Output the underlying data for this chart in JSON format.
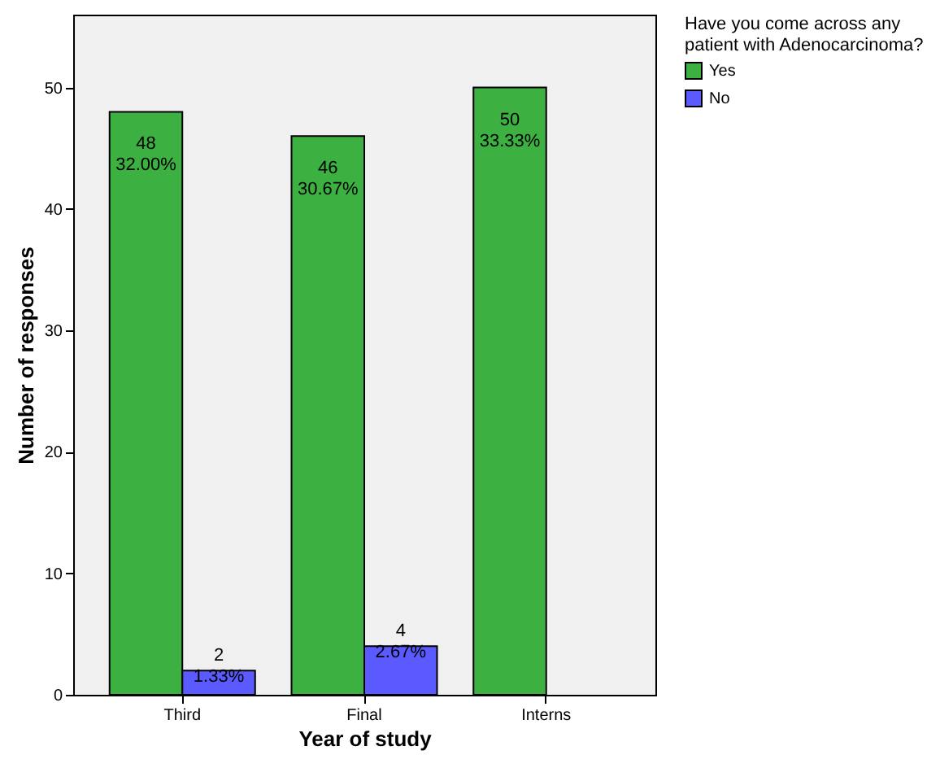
{
  "chart_data": {
    "type": "bar",
    "xlabel": "Year of study",
    "ylabel": "Number of responses",
    "legend_title": "Have you come across any patient with Adenocarcinoma?",
    "categories": [
      "Third",
      "Final",
      "Interns"
    ],
    "series": [
      {
        "name": "Yes",
        "color": "#3cb040",
        "values": [
          48,
          46,
          50
        ],
        "value_labels": [
          "48\n32.00%",
          "46\n30.67%",
          "50\n33.33%"
        ]
      },
      {
        "name": "No",
        "color": "#5a5aff",
        "values": [
          2,
          4,
          null
        ],
        "value_labels": [
          "2\n1.33%",
          "4\n2.67%",
          null
        ]
      }
    ],
    "ylim": [
      0,
      56
    ],
    "yticks": [
      0,
      10,
      20,
      30,
      40,
      50
    ],
    "grid": false,
    "legend": "top right"
  }
}
